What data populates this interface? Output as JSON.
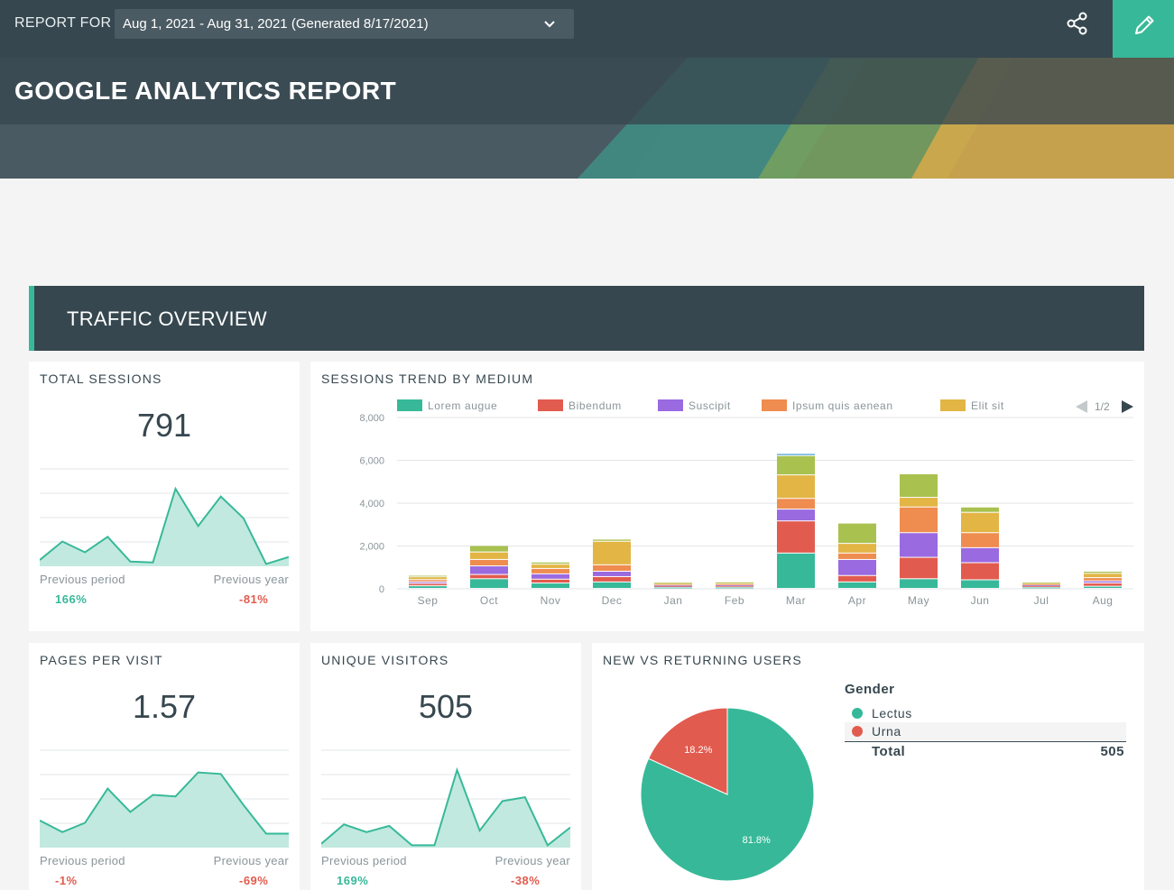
{
  "header": {
    "report_for_label": "REPORT FOR",
    "date_range": "Aug 1, 2021 - Aug 31, 2021 (Generated 8/17/2021)",
    "title": "GOOGLE ANALYTICS REPORT",
    "share_icon": "share-icon",
    "edit_icon": "pencil-icon",
    "accent_color": "#37b999"
  },
  "section": {
    "title": "TRAFFIC OVERVIEW"
  },
  "cards": {
    "total_sessions": {
      "title": "TOTAL SESSIONS",
      "value": "791",
      "prev_period_label": "Previous period",
      "prev_period_value": "166%",
      "prev_year_label": "Previous year",
      "prev_year_value": "-81%",
      "spark": [
        8,
        32,
        18,
        38,
        6,
        5,
        100,
        52,
        90,
        62,
        3,
        12
      ]
    },
    "pages_per_visit": {
      "title": "PAGES PER VISIT",
      "value": "1.57",
      "prev_period_label": "Previous period",
      "prev_period_value": "-1%",
      "prev_year_label": "Previous year",
      "prev_year_value": "-69%",
      "spark": [
        35,
        20,
        32,
        76,
        46,
        68,
        66,
        97,
        95,
        55,
        18,
        18
      ]
    },
    "unique_visitors": {
      "title": "UNIQUE VISITORS",
      "value": "505",
      "prev_period_label": "Previous period",
      "prev_period_value": "169%",
      "prev_year_label": "Previous year",
      "prev_year_value": "-38%",
      "spark": [
        5,
        30,
        20,
        28,
        3,
        3,
        100,
        22,
        60,
        65,
        3,
        26
      ]
    }
  },
  "chart_data": [
    {
      "type": "bar",
      "title": "SESSIONS TREND BY MEDIUM",
      "stacked": true,
      "categories": [
        "Sep",
        "Oct",
        "Nov",
        "Dec",
        "Jan",
        "Feb",
        "Mar",
        "Apr",
        "May",
        "Jun",
        "Jul",
        "Aug"
      ],
      "ylim": [
        0,
        8000
      ],
      "yticks": [
        "8,000",
        "6,000",
        "4,000",
        "2,000",
        "0"
      ],
      "legend_position": "top",
      "pager": "1/2",
      "series": [
        {
          "name": "Lorem augue",
          "color": "#37b999",
          "values": [
            120,
            450,
            250,
            300,
            60,
            60,
            1650,
            300,
            450,
            400,
            60,
            100
          ]
        },
        {
          "name": "Bibendum",
          "color": "#e25b4f",
          "values": [
            110,
            200,
            180,
            250,
            60,
            70,
            1500,
            300,
            1000,
            800,
            60,
            150
          ]
        },
        {
          "name": "Suscipit",
          "color": "#9a6ae0",
          "values": [
            80,
            400,
            250,
            250,
            30,
            30,
            550,
            750,
            1150,
            700,
            40,
            100
          ]
        },
        {
          "name": "Ipsum quis aenean",
          "color": "#ef8c4f",
          "values": [
            100,
            300,
            250,
            300,
            40,
            40,
            500,
            300,
            1200,
            700,
            40,
            150
          ]
        },
        {
          "name": "Elit sit",
          "color": "#e2b545",
          "values": [
            130,
            350,
            200,
            1100,
            60,
            70,
            1100,
            450,
            450,
            950,
            60,
            200
          ]
        },
        {
          "name": "",
          "color": "#a9c14f",
          "values": [
            70,
            300,
            100,
            100,
            30,
            30,
            900,
            950,
            1100,
            250,
            30,
            100
          ]
        },
        {
          "name": "",
          "color": "#5aa9d8",
          "values": [
            0,
            0,
            0,
            0,
            0,
            0,
            100,
            0,
            0,
            0,
            0,
            0
          ]
        }
      ]
    },
    {
      "type": "pie",
      "title": "NEW VS RETURNING USERS",
      "legend_title": "Gender",
      "slices": [
        {
          "name": "Lectus",
          "value": 81.8,
          "label": "81.8%",
          "color": "#37b999"
        },
        {
          "name": "Urna",
          "value": 18.2,
          "label": "18.2%",
          "color": "#e25b4f"
        }
      ],
      "total_label": "Total",
      "total_value": "505"
    }
  ]
}
